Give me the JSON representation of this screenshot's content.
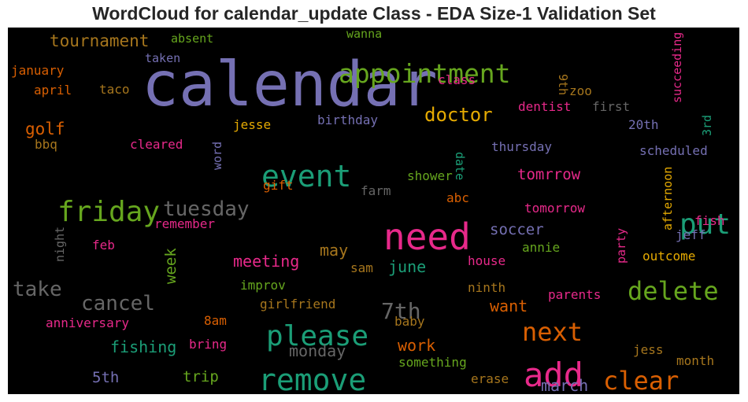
{
  "chart_data": {
    "type": "wordcloud",
    "title": "WordCloud for calendar_update Class - EDA Size-1 Validation Set",
    "background": "#000000",
    "palette": {
      "purple": "#7570b3",
      "green": "#1b9e77",
      "orange": "#d95f02",
      "pink": "#e7298a",
      "lime": "#66a61e",
      "gold": "#e6ab02",
      "brown": "#a6761d",
      "gray": "#666666"
    },
    "words": [
      {
        "text": "calendar",
        "weight": 78,
        "color": "purple"
      },
      {
        "text": "need",
        "weight": 46,
        "color": "pink"
      },
      {
        "text": "add",
        "weight": 42,
        "color": "pink"
      },
      {
        "text": "remove",
        "weight": 38,
        "color": "green"
      },
      {
        "text": "event",
        "weight": 38,
        "color": "green"
      },
      {
        "text": "friday",
        "weight": 36,
        "color": "lime"
      },
      {
        "text": "please",
        "weight": 36,
        "color": "green"
      },
      {
        "text": "put",
        "weight": 36,
        "color": "green"
      },
      {
        "text": "appointment",
        "weight": 33,
        "color": "lime"
      },
      {
        "text": "delete",
        "weight": 32,
        "color": "lime"
      },
      {
        "text": "clear",
        "weight": 32,
        "color": "orange"
      },
      {
        "text": "next",
        "weight": 32,
        "color": "orange"
      },
      {
        "text": "7th",
        "weight": 28,
        "color": "gray"
      },
      {
        "text": "tuesday",
        "weight": 26,
        "color": "gray"
      },
      {
        "text": "cancel",
        "weight": 26,
        "color": "gray"
      },
      {
        "text": "take",
        "weight": 26,
        "color": "gray"
      },
      {
        "text": "doctor",
        "weight": 24,
        "color": "gold"
      },
      {
        "text": "tournament",
        "weight": 21,
        "color": "brown"
      },
      {
        "text": "golf",
        "weight": 21,
        "color": "orange"
      },
      {
        "text": "meeting",
        "weight": 20,
        "color": "pink"
      },
      {
        "text": "fishing",
        "weight": 20,
        "color": "green"
      },
      {
        "text": "monday",
        "weight": 20,
        "color": "gray"
      },
      {
        "text": "work",
        "weight": 20,
        "color": "orange"
      },
      {
        "text": "march",
        "weight": 20,
        "color": "purple"
      },
      {
        "text": "june",
        "weight": 20,
        "color": "green"
      },
      {
        "text": "may",
        "weight": 20,
        "color": "brown"
      },
      {
        "text": "want",
        "weight": 20,
        "color": "orange"
      },
      {
        "text": "soccer",
        "weight": 19,
        "color": "purple"
      },
      {
        "text": "tomrrow",
        "weight": 19,
        "color": "pink"
      },
      {
        "text": "week",
        "weight": 19,
        "color": "lime"
      },
      {
        "text": "5th",
        "weight": 19,
        "color": "purple"
      },
      {
        "text": "trip",
        "weight": 19,
        "color": "lime"
      },
      {
        "text": "january",
        "weight": 16,
        "color": "orange"
      },
      {
        "text": "april",
        "weight": 16,
        "color": "orange"
      },
      {
        "text": "taco",
        "weight": 16,
        "color": "brown"
      },
      {
        "text": "class",
        "weight": 16,
        "color": "pink"
      },
      {
        "text": "dentist",
        "weight": 16,
        "color": "pink"
      },
      {
        "text": "first",
        "weight": 16,
        "color": "gray"
      },
      {
        "text": "zoo",
        "weight": 16,
        "color": "brown"
      },
      {
        "text": "jesse",
        "weight": 16,
        "color": "gold"
      },
      {
        "text": "birthday",
        "weight": 16,
        "color": "purple"
      },
      {
        "text": "thursday",
        "weight": 16,
        "color": "purple"
      },
      {
        "text": "20th",
        "weight": 16,
        "color": "purple"
      },
      {
        "text": "scheduled",
        "weight": 16,
        "color": "purple"
      },
      {
        "text": "cleared",
        "weight": 16,
        "color": "pink"
      },
      {
        "text": "bbq",
        "weight": 16,
        "color": "brown"
      },
      {
        "text": "shower",
        "weight": 16,
        "color": "lime"
      },
      {
        "text": "gift",
        "weight": 16,
        "color": "orange"
      },
      {
        "text": "farm",
        "weight": 16,
        "color": "gray"
      },
      {
        "text": "abc",
        "weight": 16,
        "color": "orange"
      },
      {
        "text": "tomorrow",
        "weight": 16,
        "color": "pink"
      },
      {
        "text": "fish",
        "weight": 16,
        "color": "pink"
      },
      {
        "text": "jeff",
        "weight": 16,
        "color": "purple"
      },
      {
        "text": "remember",
        "weight": 16,
        "color": "pink"
      },
      {
        "text": "feb",
        "weight": 16,
        "color": "pink"
      },
      {
        "text": "outcome",
        "weight": 16,
        "color": "gold"
      },
      {
        "text": "annie",
        "weight": 16,
        "color": "lime"
      },
      {
        "text": "house",
        "weight": 16,
        "color": "pink"
      },
      {
        "text": "sam",
        "weight": 16,
        "color": "brown"
      },
      {
        "text": "improv",
        "weight": 16,
        "color": "lime"
      },
      {
        "text": "girlfriend",
        "weight": 16,
        "color": "brown"
      },
      {
        "text": "ninth",
        "weight": 16,
        "color": "brown"
      },
      {
        "text": "parents",
        "weight": 16,
        "color": "pink"
      },
      {
        "text": "anniversary",
        "weight": 16,
        "color": "pink"
      },
      {
        "text": "8am",
        "weight": 16,
        "color": "orange"
      },
      {
        "text": "baby",
        "weight": 16,
        "color": "brown"
      },
      {
        "text": "bring",
        "weight": 16,
        "color": "pink"
      },
      {
        "text": "something",
        "weight": 16,
        "color": "lime"
      },
      {
        "text": "jess",
        "weight": 16,
        "color": "brown"
      },
      {
        "text": "month",
        "weight": 16,
        "color": "brown"
      },
      {
        "text": "erase",
        "weight": 16,
        "color": "brown"
      },
      {
        "text": "absent",
        "weight": 15,
        "color": "lime"
      },
      {
        "text": "taken",
        "weight": 15,
        "color": "purple"
      },
      {
        "text": "wanna",
        "weight": 15,
        "color": "lime"
      },
      {
        "text": "9th",
        "weight": 15,
        "color": "brown"
      },
      {
        "text": "succeeding",
        "weight": 15,
        "color": "pink"
      },
      {
        "text": "3rd",
        "weight": 15,
        "color": "green"
      },
      {
        "text": "date",
        "weight": 15,
        "color": "green"
      },
      {
        "text": "word",
        "weight": 15,
        "color": "purple"
      },
      {
        "text": "afternoon",
        "weight": 15,
        "color": "gold"
      },
      {
        "text": "party",
        "weight": 15,
        "color": "pink"
      },
      {
        "text": "night",
        "weight": 15,
        "color": "gray"
      }
    ]
  }
}
